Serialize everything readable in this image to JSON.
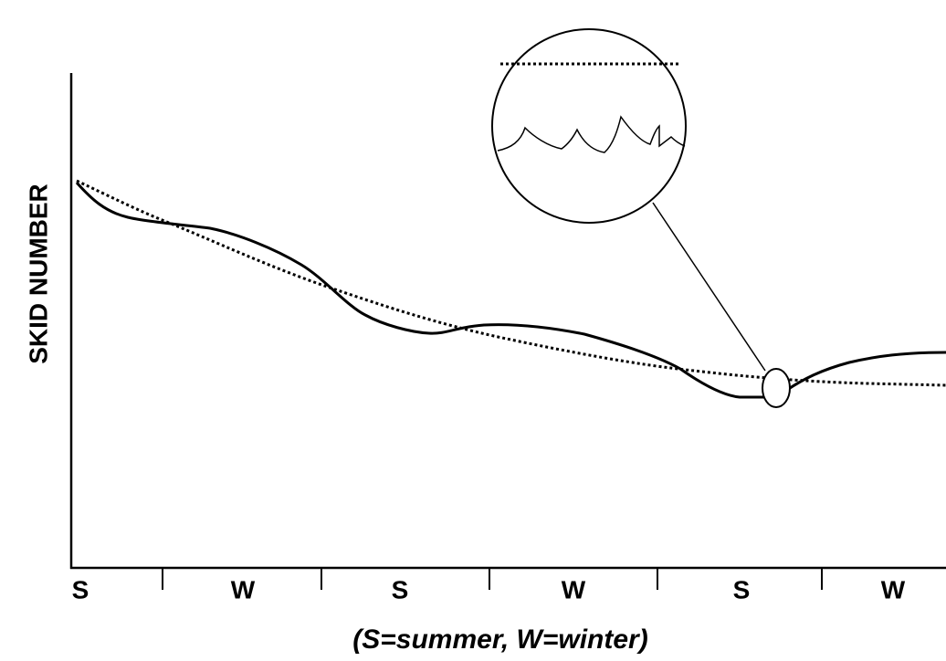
{
  "y_axis_label": "SKID NUMBER",
  "x_labels": [
    "S",
    "W",
    "S",
    "W",
    "S",
    "W"
  ],
  "caption": "(S=summer, W=winter)"
}
